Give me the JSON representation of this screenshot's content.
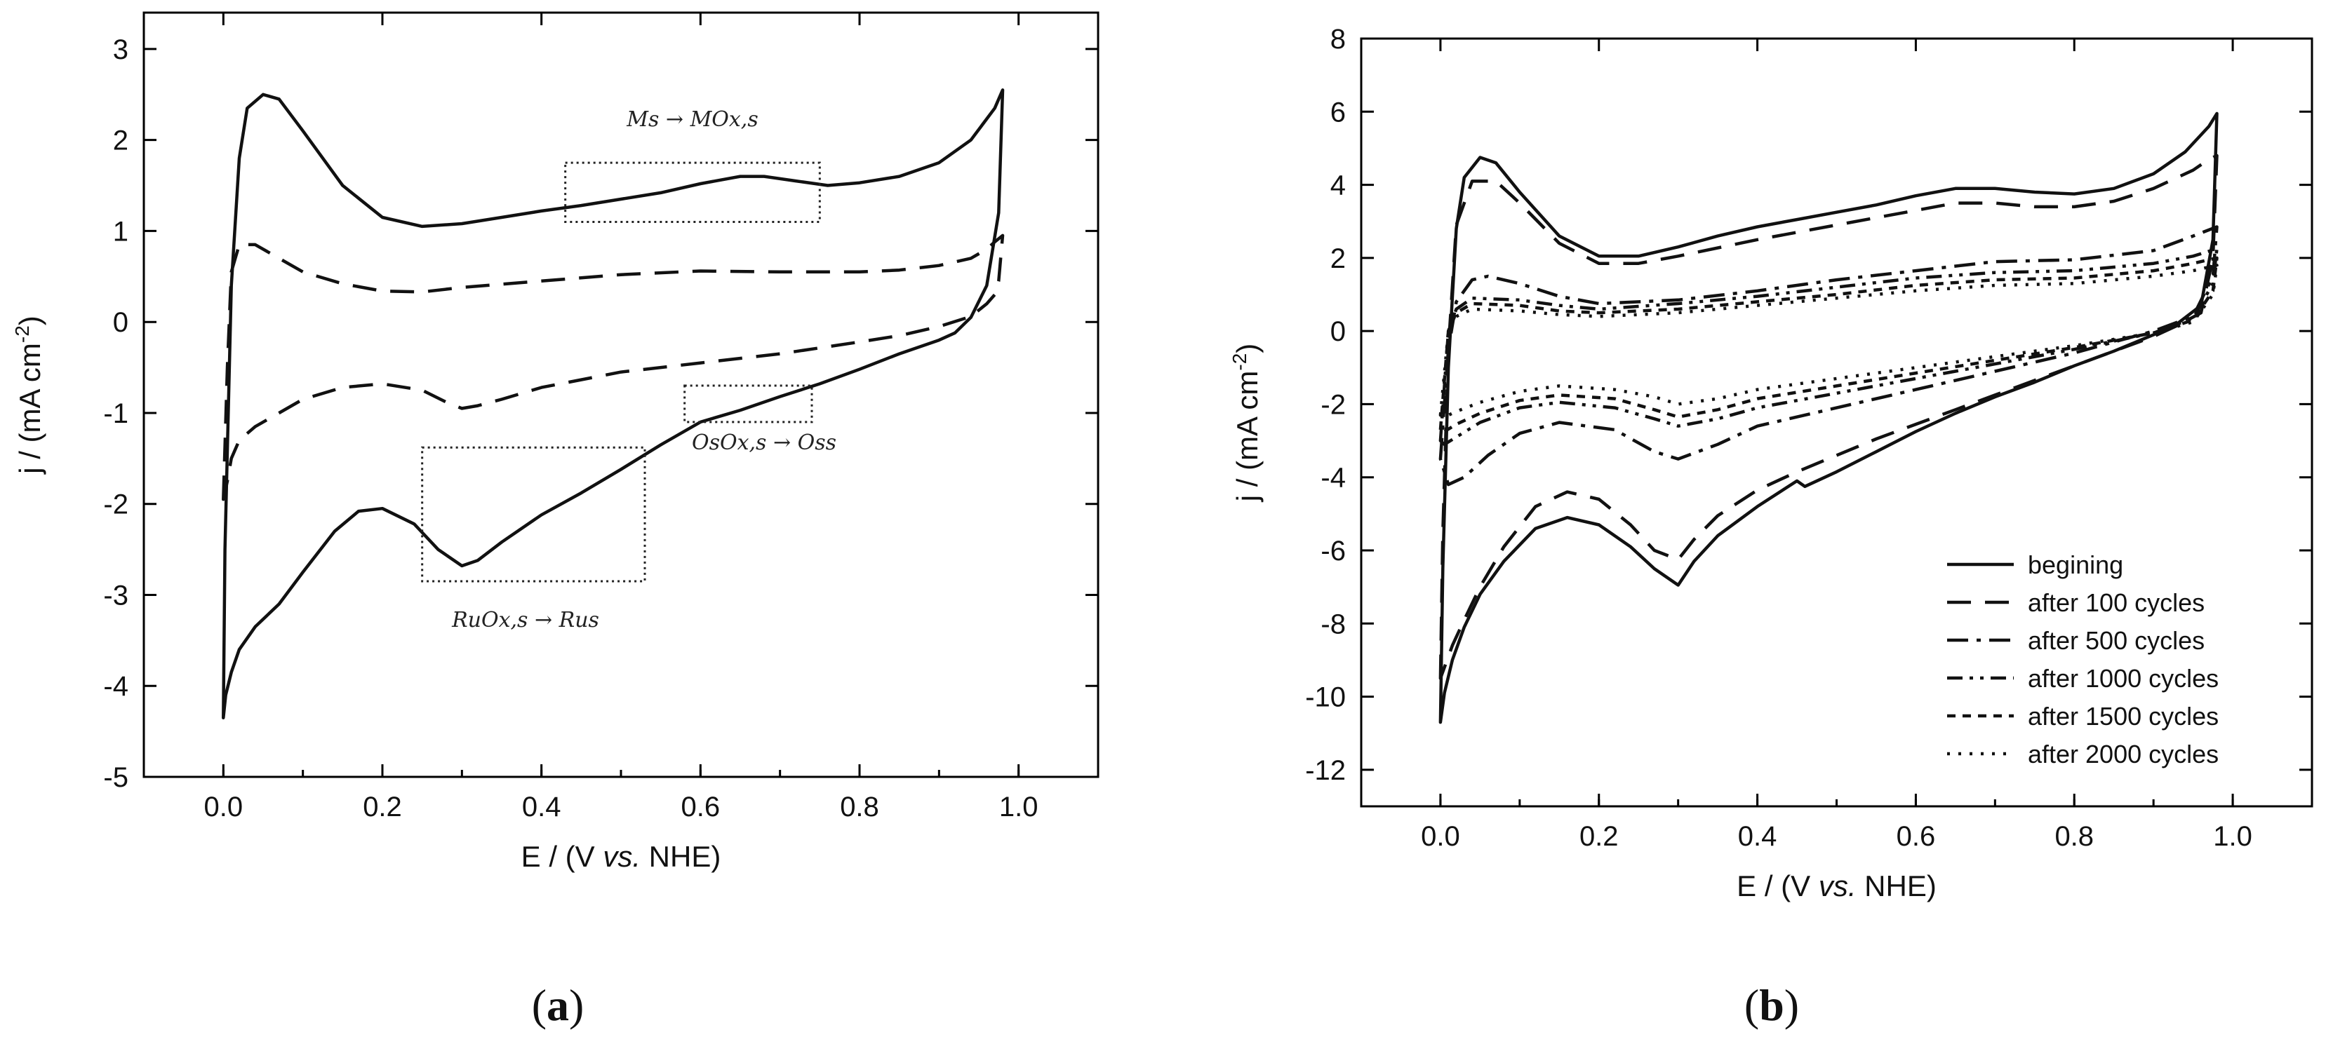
{
  "chart_data": [
    {
      "id": "a",
      "type": "line",
      "panel_label": "a",
      "xlabel": "E / (V vs. NHE)",
      "ylabel": "j / (mA cm-2)",
      "xlim": [
        -0.1,
        1.1
      ],
      "ylim": [
        -5,
        3.4
      ],
      "xticks": [
        0.0,
        0.2,
        0.4,
        0.6,
        0.8,
        1.0
      ],
      "xtick_labels": [
        "0.0",
        "0.2",
        "0.4",
        "0.6",
        "0.8",
        "1.0"
      ],
      "yticks": [
        -5,
        -4,
        -3,
        -2,
        -1,
        0,
        1,
        2,
        3
      ],
      "ytick_labels": [
        "-5",
        "-4",
        "-3",
        "-2",
        "-1",
        "0",
        "1",
        "2",
        "3"
      ],
      "annotations": [
        {
          "text": "Ms → MOx,s",
          "x": 0.59,
          "y": 2.15,
          "box": [
            0.43,
            0.75,
            1.1,
            1.75
          ]
        },
        {
          "text": "OsOx,s → Oss",
          "x": 0.68,
          "y": -1.4,
          "box": [
            0.58,
            0.74,
            -1.1,
            -0.7
          ]
        },
        {
          "text": "RuOx,s → Rus",
          "x": 0.38,
          "y": -3.35,
          "box": [
            0.25,
            0.53,
            -2.85,
            -1.38
          ]
        }
      ],
      "series": [
        {
          "name": "solid",
          "style": "solid",
          "x": [
            0.0,
            0.002,
            0.01,
            0.02,
            0.03,
            0.05,
            0.07,
            0.1,
            0.15,
            0.2,
            0.25,
            0.3,
            0.35,
            0.4,
            0.45,
            0.5,
            0.55,
            0.6,
            0.65,
            0.68,
            0.72,
            0.76,
            0.8,
            0.85,
            0.9,
            0.94,
            0.97,
            0.98,
            0.975,
            0.96,
            0.94,
            0.92,
            0.9,
            0.85,
            0.8,
            0.75,
            0.7,
            0.65,
            0.6,
            0.55,
            0.5,
            0.45,
            0.4,
            0.35,
            0.32,
            0.3,
            0.27,
            0.24,
            0.2,
            0.17,
            0.14,
            0.1,
            0.07,
            0.04,
            0.02,
            0.01,
            0.003,
            0.0
          ],
          "y": [
            -4.35,
            -2.5,
            0.4,
            1.8,
            2.35,
            2.5,
            2.45,
            2.1,
            1.5,
            1.15,
            1.05,
            1.08,
            1.15,
            1.22,
            1.28,
            1.35,
            1.42,
            1.52,
            1.6,
            1.6,
            1.55,
            1.5,
            1.53,
            1.6,
            1.75,
            2.0,
            2.35,
            2.55,
            1.2,
            0.4,
            0.05,
            -0.12,
            -0.2,
            -0.35,
            -0.52,
            -0.68,
            -0.82,
            -0.97,
            -1.1,
            -1.35,
            -1.62,
            -1.88,
            -2.12,
            -2.42,
            -2.62,
            -2.68,
            -2.5,
            -2.22,
            -2.05,
            -2.08,
            -2.3,
            -2.75,
            -3.1,
            -3.35,
            -3.6,
            -3.85,
            -4.1,
            -4.35
          ]
        },
        {
          "name": "dashed",
          "style": "dashed",
          "x": [
            0.0,
            0.005,
            0.01,
            0.02,
            0.04,
            0.07,
            0.1,
            0.15,
            0.2,
            0.25,
            0.3,
            0.4,
            0.5,
            0.6,
            0.7,
            0.8,
            0.85,
            0.9,
            0.94,
            0.96,
            0.97,
            0.98,
            0.975,
            0.97,
            0.96,
            0.94,
            0.9,
            0.85,
            0.8,
            0.7,
            0.6,
            0.5,
            0.4,
            0.35,
            0.32,
            0.3,
            0.28,
            0.25,
            0.2,
            0.15,
            0.1,
            0.07,
            0.04,
            0.02,
            0.01,
            0.005
          ],
          "y": [
            -1.95,
            -0.5,
            0.55,
            0.85,
            0.85,
            0.7,
            0.55,
            0.42,
            0.34,
            0.33,
            0.38,
            0.45,
            0.52,
            0.56,
            0.55,
            0.55,
            0.57,
            0.62,
            0.7,
            0.8,
            0.88,
            0.95,
            0.45,
            0.3,
            0.2,
            0.06,
            -0.05,
            -0.15,
            -0.22,
            -0.35,
            -0.45,
            -0.55,
            -0.72,
            -0.85,
            -0.92,
            -0.95,
            -0.88,
            -0.75,
            -0.68,
            -0.72,
            -0.85,
            -1.0,
            -1.15,
            -1.3,
            -1.5,
            -1.75
          ]
        }
      ]
    },
    {
      "id": "b",
      "type": "line",
      "panel_label": "b",
      "xlabel": "E / (V vs. NHE)",
      "ylabel": "j / (mA cm-2)",
      "xlim": [
        -0.1,
        1.1
      ],
      "ylim": [
        -13,
        8
      ],
      "xticks": [
        0.0,
        0.2,
        0.4,
        0.6,
        0.8,
        1.0
      ],
      "xtick_labels": [
        "0.0",
        "0.2",
        "0.4",
        "0.6",
        "0.8",
        "1.0"
      ],
      "yticks": [
        -12,
        -10,
        -8,
        -6,
        -4,
        -2,
        0,
        2,
        4,
        6,
        8
      ],
      "ytick_labels": [
        "-12",
        "-10",
        "-8",
        "-6",
        "-4",
        "-2",
        "0",
        "2",
        "4",
        "6",
        "8"
      ],
      "legend": {
        "position": "bottom-right"
      },
      "series": [
        {
          "name": "begining",
          "style": "solid",
          "x": [
            0.0,
            0.003,
            0.01,
            0.02,
            0.03,
            0.05,
            0.07,
            0.1,
            0.15,
            0.2,
            0.25,
            0.3,
            0.35,
            0.4,
            0.45,
            0.5,
            0.55,
            0.6,
            0.65,
            0.7,
            0.75,
            0.8,
            0.85,
            0.9,
            0.94,
            0.97,
            0.98,
            0.975,
            0.96,
            0.93,
            0.9,
            0.85,
            0.8,
            0.75,
            0.7,
            0.65,
            0.6,
            0.55,
            0.5,
            0.46,
            0.45,
            0.4,
            0.35,
            0.32,
            0.3,
            0.27,
            0.24,
            0.2,
            0.16,
            0.12,
            0.08,
            0.05,
            0.03,
            0.015,
            0.005,
            0.0
          ],
          "y": [
            -10.7,
            -6.5,
            -1.0,
            2.8,
            4.2,
            4.75,
            4.6,
            3.8,
            2.6,
            2.05,
            2.05,
            2.3,
            2.6,
            2.85,
            3.05,
            3.25,
            3.45,
            3.7,
            3.9,
            3.9,
            3.8,
            3.75,
            3.9,
            4.3,
            4.9,
            5.6,
            5.95,
            2.5,
            0.7,
            0.2,
            -0.1,
            -0.55,
            -0.95,
            -1.4,
            -1.8,
            -2.25,
            -2.75,
            -3.3,
            -3.85,
            -4.25,
            -4.1,
            -4.8,
            -5.6,
            -6.3,
            -6.95,
            -6.5,
            -5.9,
            -5.3,
            -5.1,
            -5.4,
            -6.3,
            -7.2,
            -8.1,
            -9.0,
            -9.9,
            -10.7
          ]
        },
        {
          "name": "after 100 cycles",
          "style": "dashed",
          "x": [
            0.0,
            0.003,
            0.01,
            0.02,
            0.04,
            0.07,
            0.1,
            0.15,
            0.2,
            0.25,
            0.3,
            0.4,
            0.5,
            0.6,
            0.65,
            0.7,
            0.75,
            0.8,
            0.85,
            0.9,
            0.95,
            0.97,
            0.98,
            0.975,
            0.96,
            0.93,
            0.9,
            0.85,
            0.8,
            0.75,
            0.7,
            0.65,
            0.6,
            0.55,
            0.5,
            0.45,
            0.4,
            0.35,
            0.32,
            0.3,
            0.27,
            0.24,
            0.2,
            0.16,
            0.12,
            0.08,
            0.05,
            0.03,
            0.015,
            0.005
          ],
          "y": [
            -9.5,
            -5.5,
            -0.5,
            2.9,
            4.1,
            4.1,
            3.5,
            2.4,
            1.85,
            1.85,
            2.05,
            2.5,
            2.9,
            3.3,
            3.5,
            3.5,
            3.4,
            3.4,
            3.55,
            3.9,
            4.4,
            4.7,
            4.8,
            2.0,
            0.5,
            0.15,
            -0.15,
            -0.55,
            -0.95,
            -1.35,
            -1.75,
            -2.15,
            -2.55,
            -2.95,
            -3.4,
            -3.85,
            -4.35,
            -5.05,
            -5.7,
            -6.25,
            -6.0,
            -5.3,
            -4.6,
            -4.4,
            -4.8,
            -5.9,
            -7.0,
            -7.9,
            -8.6,
            -9.2
          ]
        },
        {
          "name": "after 500 cycles",
          "style": "dashdot",
          "x": [
            0.0,
            0.01,
            0.02,
            0.04,
            0.06,
            0.1,
            0.15,
            0.2,
            0.3,
            0.4,
            0.5,
            0.6,
            0.7,
            0.8,
            0.9,
            0.95,
            0.98,
            0.975,
            0.95,
            0.9,
            0.8,
            0.7,
            0.6,
            0.5,
            0.4,
            0.35,
            0.3,
            0.27,
            0.22,
            0.15,
            0.1,
            0.06,
            0.03,
            0.01
          ],
          "y": [
            -3.5,
            -0.5,
            0.8,
            1.4,
            1.5,
            1.3,
            0.95,
            0.75,
            0.85,
            1.1,
            1.4,
            1.65,
            1.9,
            1.95,
            2.2,
            2.6,
            2.85,
            1.5,
            0.4,
            0.0,
            -0.6,
            -1.1,
            -1.6,
            -2.1,
            -2.6,
            -3.1,
            -3.5,
            -3.3,
            -2.7,
            -2.5,
            -2.8,
            -3.4,
            -4.0,
            -4.2
          ]
        },
        {
          "name": "after 1000 cycles",
          "style": "dashdotdot",
          "x": [
            0.0,
            0.01,
            0.02,
            0.04,
            0.1,
            0.15,
            0.2,
            0.3,
            0.4,
            0.5,
            0.6,
            0.7,
            0.8,
            0.9,
            0.95,
            0.98,
            0.975,
            0.95,
            0.9,
            0.8,
            0.7,
            0.6,
            0.5,
            0.4,
            0.35,
            0.3,
            0.27,
            0.22,
            0.15,
            0.1,
            0.05,
            0.02,
            0.005
          ],
          "y": [
            -3.0,
            0.0,
            0.6,
            0.9,
            0.85,
            0.7,
            0.6,
            0.75,
            0.95,
            1.2,
            1.45,
            1.6,
            1.65,
            1.85,
            2.05,
            2.25,
            1.3,
            0.35,
            -0.05,
            -0.5,
            -0.9,
            -1.3,
            -1.7,
            -2.1,
            -2.4,
            -2.6,
            -2.4,
            -2.1,
            -1.95,
            -2.1,
            -2.5,
            -2.9,
            -3.1
          ]
        },
        {
          "name": "after 1500 cycles",
          "style": "shortdash",
          "x": [
            0.0,
            0.01,
            0.02,
            0.04,
            0.1,
            0.15,
            0.2,
            0.3,
            0.4,
            0.5,
            0.6,
            0.7,
            0.8,
            0.9,
            0.95,
            0.98,
            0.975,
            0.95,
            0.9,
            0.8,
            0.7,
            0.6,
            0.5,
            0.4,
            0.35,
            0.3,
            0.27,
            0.22,
            0.15,
            0.1,
            0.05,
            0.02,
            0.005
          ],
          "y": [
            -2.7,
            0.0,
            0.5,
            0.75,
            0.7,
            0.55,
            0.5,
            0.6,
            0.8,
            1.0,
            1.25,
            1.4,
            1.45,
            1.65,
            1.85,
            2.0,
            1.1,
            0.3,
            -0.05,
            -0.45,
            -0.8,
            -1.15,
            -1.5,
            -1.85,
            -2.15,
            -2.35,
            -2.15,
            -1.85,
            -1.75,
            -1.9,
            -2.25,
            -2.55,
            -2.75
          ]
        },
        {
          "name": "after 2000 cycles",
          "style": "dotted",
          "x": [
            0.0,
            0.01,
            0.02,
            0.04,
            0.1,
            0.15,
            0.2,
            0.3,
            0.4,
            0.5,
            0.6,
            0.7,
            0.8,
            0.9,
            0.95,
            0.98,
            0.975,
            0.95,
            0.9,
            0.8,
            0.7,
            0.6,
            0.5,
            0.4,
            0.35,
            0.3,
            0.27,
            0.22,
            0.15,
            0.1,
            0.05,
            0.02,
            0.005
          ],
          "y": [
            -2.3,
            0.0,
            0.4,
            0.6,
            0.55,
            0.45,
            0.4,
            0.5,
            0.7,
            0.9,
            1.1,
            1.25,
            1.3,
            1.5,
            1.65,
            1.8,
            1.0,
            0.25,
            -0.05,
            -0.4,
            -0.7,
            -1.0,
            -1.3,
            -1.6,
            -1.85,
            -2.0,
            -1.8,
            -1.6,
            -1.5,
            -1.65,
            -1.95,
            -2.2,
            -2.35
          ]
        }
      ]
    }
  ]
}
